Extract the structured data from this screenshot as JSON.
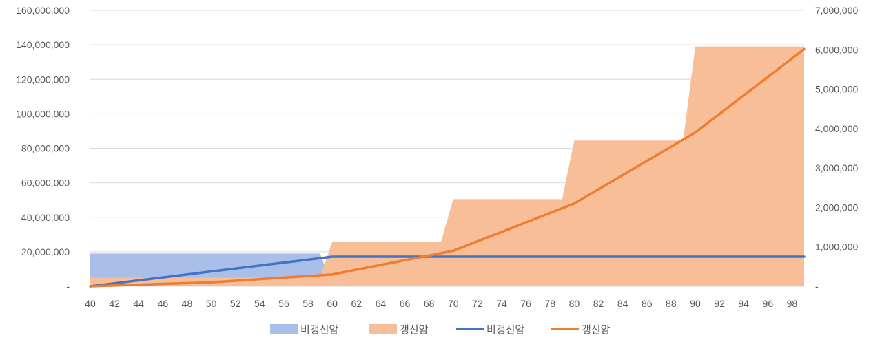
{
  "chart_data": {
    "type": "area",
    "x": [
      40,
      41,
      42,
      43,
      44,
      45,
      46,
      47,
      48,
      49,
      50,
      51,
      52,
      53,
      54,
      55,
      56,
      57,
      58,
      59,
      60,
      61,
      62,
      63,
      64,
      65,
      66,
      67,
      68,
      69,
      70,
      71,
      72,
      73,
      74,
      75,
      76,
      77,
      78,
      79,
      80,
      81,
      82,
      83,
      84,
      85,
      86,
      87,
      88,
      89,
      90,
      91,
      92,
      93,
      94,
      95,
      96,
      97,
      98,
      99
    ],
    "x_tick_labels": [
      "40",
      "42",
      "44",
      "46",
      "48",
      "50",
      "52",
      "54",
      "56",
      "58",
      "60",
      "62",
      "64",
      "66",
      "68",
      "70",
      "72",
      "74",
      "76",
      "78",
      "80",
      "82",
      "84",
      "86",
      "88",
      "90",
      "92",
      "94",
      "96",
      "98"
    ],
    "y_left": {
      "ylim": [
        0,
        160000000
      ],
      "tick_labels": [
        "-",
        "20,000,000",
        "40,000,000",
        "60,000,000",
        "80,000,000",
        "100,000,000",
        "120,000,000",
        "140,000,000",
        "160,000,000"
      ]
    },
    "y_right": {
      "ylim": [
        0,
        7000000
      ],
      "tick_labels": [
        "-",
        "1,000,000",
        "2,000,000",
        "3,000,000",
        "4,000,000",
        "5,000,000",
        "6,000,000",
        "7,000,000"
      ]
    },
    "grid": true,
    "legend_position": "bottom",
    "series": [
      {
        "name": "비갱신암",
        "kind": "area",
        "axis": "left",
        "color": "#a9bfe9",
        "values": [
          19000000,
          19000000,
          19000000,
          19000000,
          19000000,
          19000000,
          19000000,
          19000000,
          19000000,
          19000000,
          19000000,
          19000000,
          19000000,
          19000000,
          19000000,
          19000000,
          19000000,
          19000000,
          19000000,
          19000000,
          0,
          0,
          0,
          0,
          0,
          0,
          0,
          0,
          0,
          0,
          0,
          0,
          0,
          0,
          0,
          0,
          0,
          0,
          0,
          0,
          0,
          0,
          0,
          0,
          0,
          0,
          0,
          0,
          0,
          0,
          0,
          0,
          0,
          0,
          0,
          0,
          0,
          0,
          0,
          0
        ]
      },
      {
        "name": "갱신암",
        "kind": "area",
        "axis": "left",
        "color": "#f7be98",
        "values": [
          5000000,
          5000000,
          5000000,
          5000000,
          5000000,
          5000000,
          5000000,
          5000000,
          5000000,
          5000000,
          5000000,
          5000000,
          5000000,
          5000000,
          5000000,
          5000000,
          5000000,
          5000000,
          5000000,
          5000000,
          26000000,
          26000000,
          26000000,
          26000000,
          26000000,
          26000000,
          26000000,
          26000000,
          26000000,
          26000000,
          50500000,
          50500000,
          50500000,
          50500000,
          50500000,
          50500000,
          50500000,
          50500000,
          50500000,
          50500000,
          84500000,
          84500000,
          84500000,
          84500000,
          84500000,
          84500000,
          84500000,
          84500000,
          84500000,
          84500000,
          139000000,
          139000000,
          139000000,
          139000000,
          139000000,
          139000000,
          139000000,
          139000000,
          139000000,
          139000000
        ]
      },
      {
        "name": "비갱신암",
        "kind": "line",
        "axis": "right",
        "color": "#4472c4",
        "values": [
          0,
          37500,
          75000,
          112500,
          150000,
          187500,
          225000,
          262500,
          300000,
          337500,
          375000,
          412500,
          450000,
          487500,
          525000,
          562500,
          600000,
          637500,
          675000,
          712500,
          750000,
          750000,
          750000,
          750000,
          750000,
          750000,
          750000,
          750000,
          750000,
          750000,
          750000,
          750000,
          750000,
          750000,
          750000,
          750000,
          750000,
          750000,
          750000,
          750000,
          750000,
          750000,
          750000,
          750000,
          750000,
          750000,
          750000,
          750000,
          750000,
          750000,
          750000,
          750000,
          750000,
          750000,
          750000,
          750000,
          750000,
          750000,
          750000,
          750000
        ]
      },
      {
        "name": "갱신암",
        "kind": "line",
        "axis": "right",
        "color": "#ed7d31",
        "values": [
          0,
          10000,
          20000,
          30000,
          40000,
          50000,
          60000,
          70000,
          80000,
          90000,
          100000,
          120000,
          140000,
          160000,
          180000,
          200000,
          220000,
          240000,
          260000,
          280000,
          300000,
          360000,
          420000,
          480000,
          540000,
          600000,
          660000,
          720000,
          780000,
          840000,
          900000,
          1020000,
          1140000,
          1260000,
          1380000,
          1500000,
          1620000,
          1740000,
          1860000,
          1980000,
          2100000,
          2280000,
          2460000,
          2640000,
          2820000,
          3000000,
          3180000,
          3360000,
          3540000,
          3720000,
          3900000,
          4135000,
          4370000,
          4605000,
          4840000,
          5075000,
          5310000,
          5545000,
          5780000,
          6015000
        ]
      }
    ],
    "legend": [
      {
        "label": "비갱신암",
        "kind": "area",
        "color": "#a9bfe9"
      },
      {
        "label": "갱신암",
        "kind": "area",
        "color": "#f7be98"
      },
      {
        "label": "비갱신암",
        "kind": "line",
        "color": "#4472c4"
      },
      {
        "label": "갱신암",
        "kind": "line",
        "color": "#ed7d31"
      }
    ]
  }
}
